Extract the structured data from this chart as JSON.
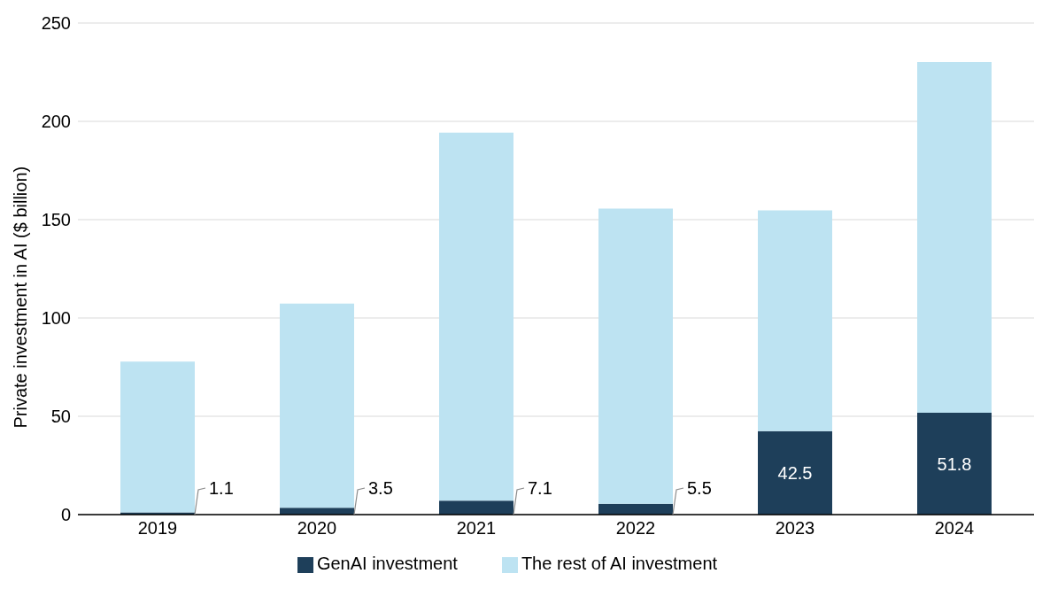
{
  "chart_data": {
    "type": "bar",
    "stacked": true,
    "ylabel": "Private investment in AI ($ billion)",
    "categories": [
      "2019",
      "2020",
      "2021",
      "2022",
      "2023",
      "2024"
    ],
    "series": [
      {
        "name": "GenAI investment",
        "color": "#1e3f5a",
        "values": [
          1.1,
          3.5,
          7.1,
          5.5,
          42.5,
          51.8
        ],
        "value_labels": [
          "1.1",
          "3.5",
          "7.1",
          "5.5",
          "42.5",
          "51.8"
        ]
      },
      {
        "name": "The rest of AI investment",
        "color": "#bde3f2",
        "values": [
          76.7,
          103.8,
          187.2,
          150.1,
          112.2,
          178.4
        ]
      }
    ],
    "ylim": [
      0,
      250
    ],
    "yticks": [
      0,
      50,
      100,
      150,
      200,
      250
    ],
    "grid": "y",
    "legend": "bottom"
  }
}
